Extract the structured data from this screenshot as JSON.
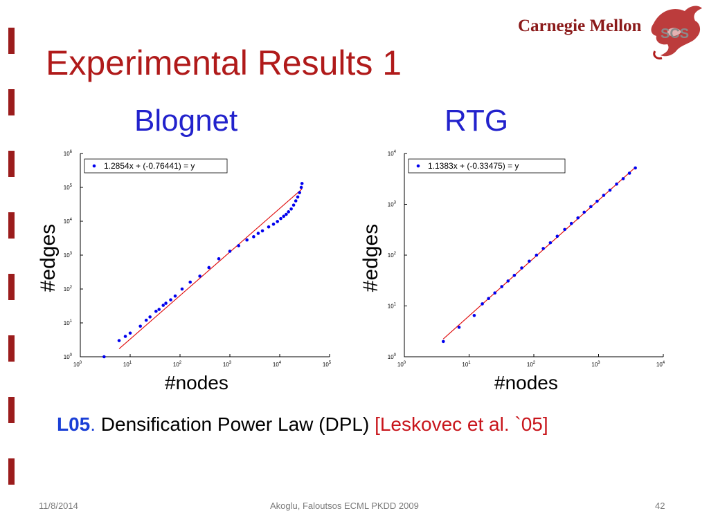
{
  "slide": {
    "title": "Experimental Results 1",
    "logo_text": "Carnegie Mellon",
    "logo_badge": "SCS",
    "caption": {
      "tag": "L05",
      "dot": ".",
      "text": " Densification Power Law (DPL) ",
      "ref": "[Leskovec et al. `05]"
    },
    "footer": {
      "date": "11/8/2014",
      "center": "Akoglu, Faloutsos ECML PKDD 2009",
      "page": "42"
    },
    "colors": {
      "title": "#b01a1a",
      "subtitle": "#2222cc",
      "points": "#0000ee",
      "fit_line": "#e01010"
    }
  },
  "chart_data": [
    {
      "type": "scatter",
      "title": "Blognet",
      "xlabel": "#nodes",
      "ylabel": "#edges",
      "xscale": "log",
      "yscale": "log",
      "xlim": [
        1,
        100000
      ],
      "ylim": [
        1,
        1000000
      ],
      "xticks": [
        "10^0",
        "10^1",
        "10^2",
        "10^3",
        "10^4",
        "10^5"
      ],
      "yticks": [
        "10^0",
        "10^1",
        "10^2",
        "10^3",
        "10^4",
        "10^5",
        "10^6"
      ],
      "legend": "1.2854x + (-0.76441) = y",
      "legend_position": "top-left",
      "fit": {
        "slope": 1.2854,
        "intercept": -0.76441,
        "x_range": [
          6,
          28000
        ]
      },
      "x": [
        3,
        6,
        8,
        10,
        16,
        21,
        25,
        33,
        38,
        46,
        52,
        65,
        80,
        110,
        160,
        250,
        380,
        600,
        1000,
        1500,
        2200,
        3000,
        3700,
        4500,
        6000,
        7500,
        9000,
        10500,
        12000,
        13500,
        15000,
        17000,
        19000,
        21000,
        23000,
        25000,
        27000,
        28000
      ],
      "y": [
        1,
        3,
        4,
        5,
        8,
        12,
        15,
        22,
        25,
        33,
        38,
        48,
        62,
        100,
        160,
        240,
        430,
        780,
        1300,
        1900,
        2800,
        3500,
        4400,
        5200,
        6800,
        8200,
        9800,
        12000,
        14000,
        16000,
        19000,
        23000,
        30000,
        40000,
        52000,
        70000,
        100000,
        130000
      ]
    },
    {
      "type": "scatter",
      "title": "RTG",
      "xlabel": "#nodes",
      "ylabel": "#edges",
      "xscale": "log",
      "yscale": "log",
      "xlim": [
        1,
        10000
      ],
      "ylim": [
        1,
        10000
      ],
      "xticks": [
        "10^0",
        "10^1",
        "10^2",
        "10^3",
        "10^4"
      ],
      "yticks": [
        "10^0",
        "10^1",
        "10^2",
        "10^3",
        "10^4"
      ],
      "legend": "1.1383x + (-0.33475) = y",
      "legend_position": "top-left",
      "fit": {
        "slope": 1.1383,
        "intercept": -0.33475,
        "x_range": [
          4,
          3700
        ]
      },
      "x": [
        4,
        7,
        12,
        16,
        20,
        25,
        32,
        40,
        50,
        65,
        85,
        110,
        140,
        180,
        230,
        300,
        380,
        480,
        600,
        760,
        950,
        1200,
        1500,
        1900,
        2400,
        3000,
        3700
      ],
      "y": [
        2,
        3.8,
        6.5,
        11,
        14,
        18,
        24,
        31,
        40,
        56,
        76,
        100,
        135,
        175,
        235,
        320,
        420,
        540,
        700,
        900,
        1150,
        1500,
        1900,
        2500,
        3200,
        4100,
        5200
      ]
    }
  ]
}
